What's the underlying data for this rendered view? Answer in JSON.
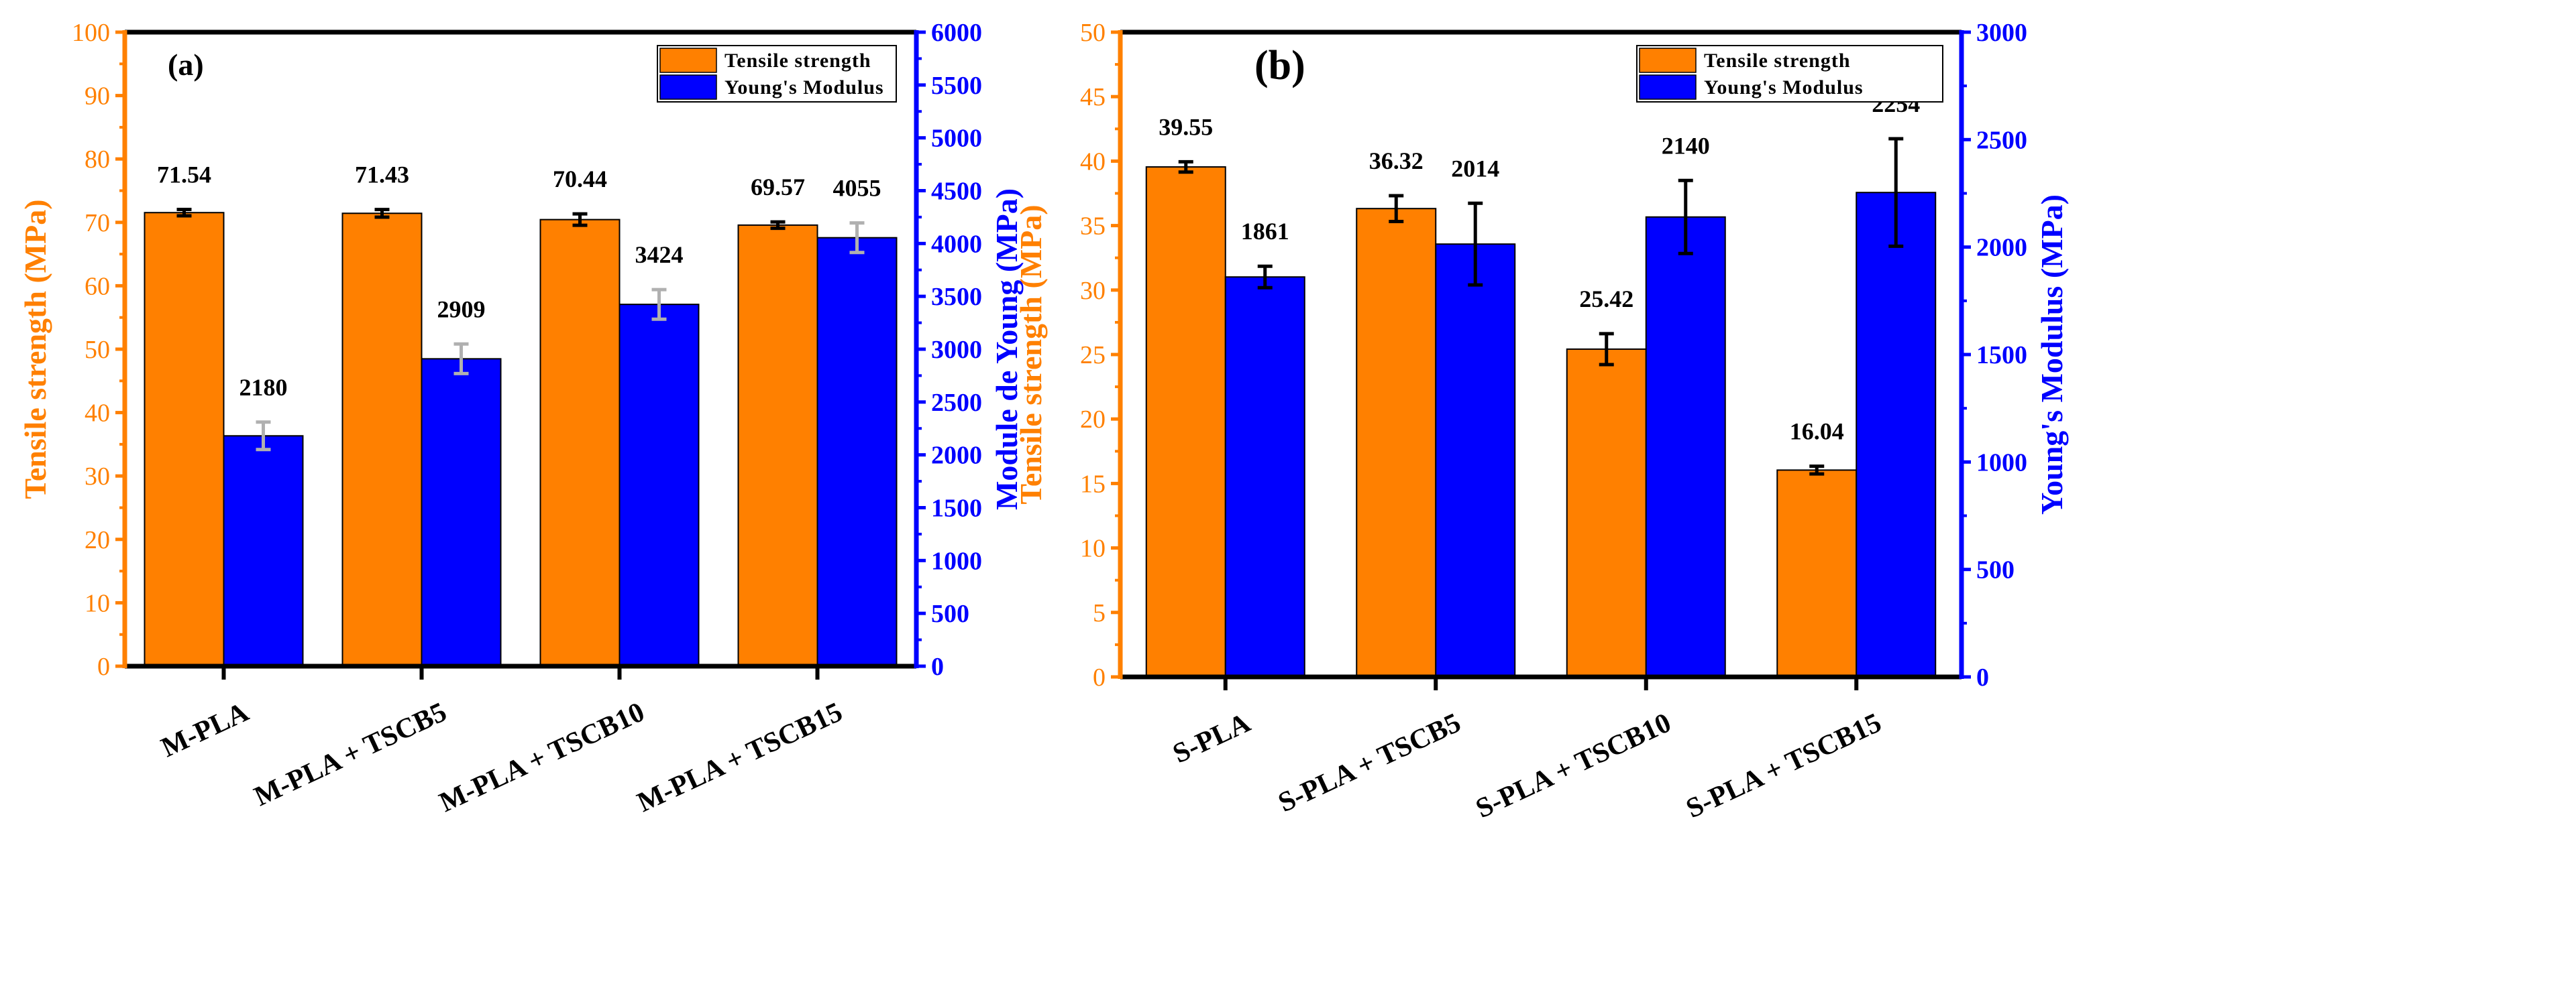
{
  "colors": {
    "tensile": "#FF8000",
    "modulus": "#0000FF",
    "axis_left": "#FF8000",
    "axis_right": "#0000FF",
    "frame": "#000000",
    "err_a_modulus": "#B0B0B0"
  },
  "chart_data": [
    {
      "type": "bar",
      "panel_label": "(a)",
      "categories": [
        "M-PLA",
        "M-PLA + TSCB5",
        "M-PLA + TSCB10",
        "M-PLA + TSCB15"
      ],
      "ylabel": "Tensile strength (MPa)",
      "y2label": "Module de Young (MPa)",
      "ylim": [
        0,
        100
      ],
      "yticks": [
        0,
        10,
        20,
        30,
        40,
        50,
        60,
        70,
        80,
        90,
        100
      ],
      "y2lim": [
        0,
        6000
      ],
      "y2ticks": [
        0,
        500,
        1000,
        1500,
        2000,
        2500,
        3000,
        3500,
        4000,
        4500,
        5000,
        5500,
        6000
      ],
      "legend": [
        "Tensile strength",
        "Young's Modulus"
      ],
      "legend_position": "top-right",
      "series": [
        {
          "name": "Tensile strength",
          "axis": "left",
          "values": [
            71.54,
            71.43,
            70.44,
            69.57
          ],
          "errors": [
            0.5,
            0.6,
            0.9,
            0.5
          ],
          "labels": [
            "71.54",
            "71.43",
            "70.44",
            "69.57"
          ]
        },
        {
          "name": "Young's Modulus",
          "axis": "right",
          "values": [
            2180,
            2909,
            3424,
            4055
          ],
          "errors": [
            130,
            140,
            140,
            140
          ],
          "labels": [
            "2180",
            "2909",
            "3424",
            "4055"
          ]
        }
      ]
    },
    {
      "type": "bar",
      "panel_label": "(b)",
      "categories": [
        "S-PLA",
        "S-PLA + TSCB5",
        "S-PLA + TSCB10",
        "S-PLA + TSCB15"
      ],
      "ylabel": "Tensile strength (MPa)",
      "y2label": "Young's Modulus (MPa)",
      "ylim": [
        0,
        50
      ],
      "yticks": [
        0,
        5,
        10,
        15,
        20,
        25,
        30,
        35,
        40,
        45,
        50
      ],
      "y2lim": [
        0,
        3000
      ],
      "y2ticks": [
        0,
        500,
        1000,
        1500,
        2000,
        2500,
        3000
      ],
      "legend": [
        "Tensile strength",
        "Young's Modulus"
      ],
      "legend_position": "top-right",
      "series": [
        {
          "name": "Tensile strength",
          "axis": "left",
          "values": [
            39.55,
            36.32,
            25.42,
            16.04
          ],
          "errors": [
            0.4,
            1.0,
            1.2,
            0.3
          ],
          "labels": [
            "39.55",
            "36.32",
            "25.42",
            "16.04"
          ]
        },
        {
          "name": "Young's Modulus",
          "axis": "right",
          "values": [
            1861,
            2014,
            2140,
            2254
          ],
          "errors": [
            50,
            190,
            170,
            250
          ],
          "labels": [
            "1861",
            "2014",
            "2140",
            "2254"
          ]
        }
      ]
    }
  ]
}
